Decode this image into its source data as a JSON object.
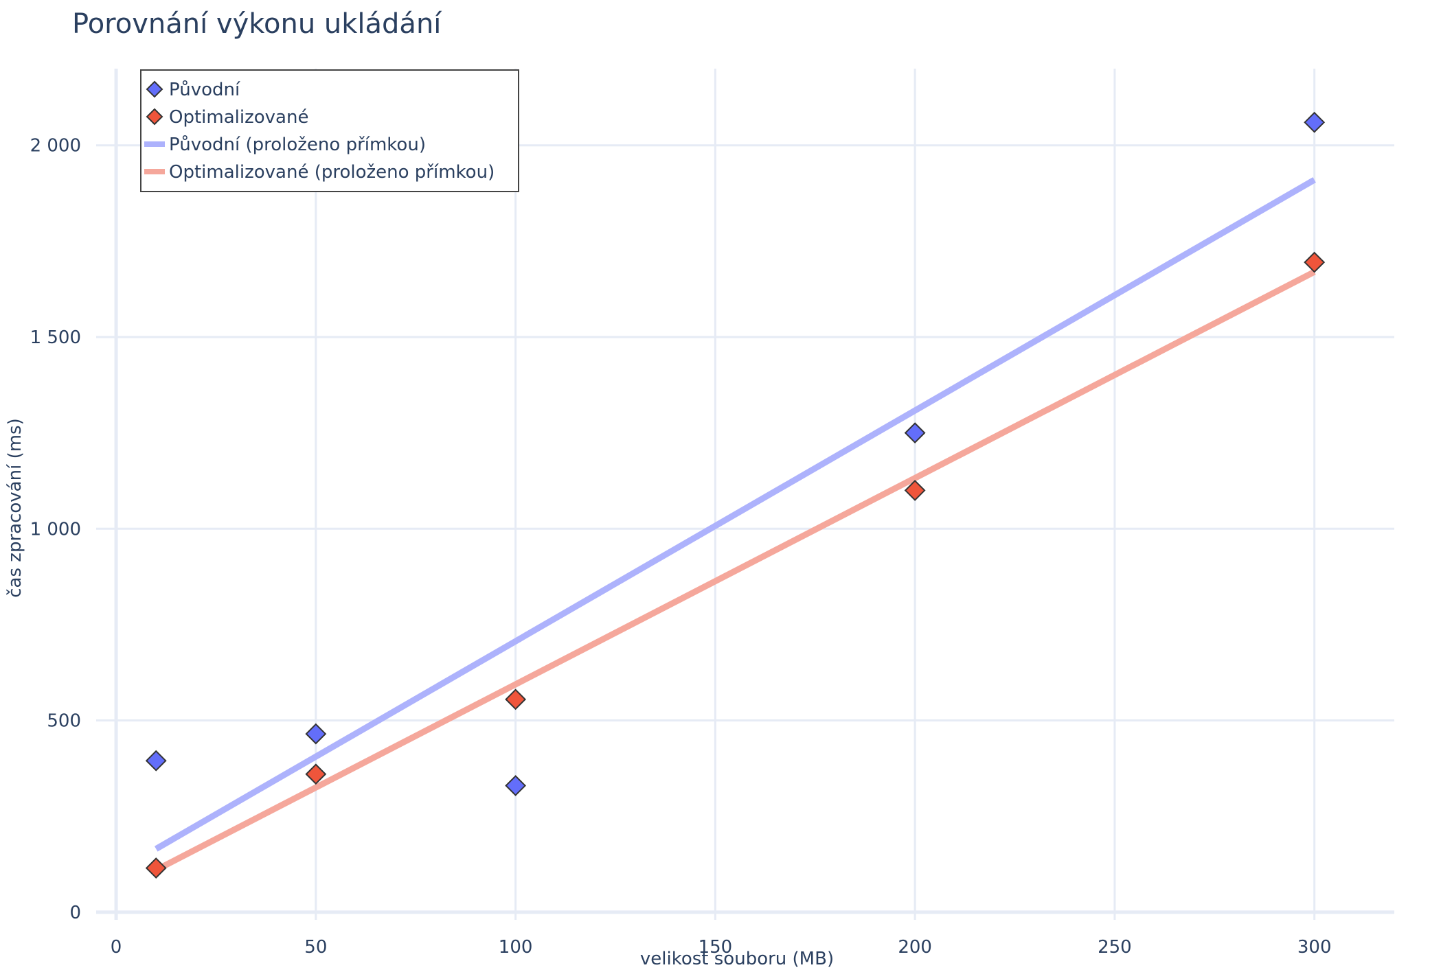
{
  "chart_data": {
    "type": "scatter",
    "title": "Porovnání výkonu ukládání",
    "xlabel": "velikost souboru (MB)",
    "ylabel": "čas zpracování (ms)",
    "xlim": [
      -5,
      320
    ],
    "ylim": [
      -20,
      2200
    ],
    "x_ticks": [
      0,
      50,
      100,
      150,
      200,
      250,
      300
    ],
    "y_ticks": [
      0,
      500,
      1000,
      1500,
      2000
    ],
    "x_tick_labels": [
      "0",
      "50",
      "100",
      "150",
      "200",
      "250",
      "300"
    ],
    "y_tick_labels": [
      "0",
      "500",
      "1 000",
      "1 500",
      "2 000"
    ],
    "grid": true,
    "legend_position": "top-left",
    "series": [
      {
        "name": "Původní",
        "kind": "markers",
        "marker": "diamond",
        "color": "#636efa",
        "x": [
          10,
          50,
          100,
          200,
          300
        ],
        "y": [
          395,
          465,
          330,
          1250,
          2060
        ]
      },
      {
        "name": "Optimalizované",
        "kind": "markers",
        "marker": "diamond",
        "color": "#ef553b",
        "x": [
          10,
          50,
          100,
          200,
          300
        ],
        "y": [
          115,
          360,
          555,
          1100,
          1695
        ]
      },
      {
        "name": "Původní (proloženo přímkou)",
        "kind": "line",
        "color": "#adb2fc",
        "x": [
          10,
          300
        ],
        "y": [
          165,
          1910
        ]
      },
      {
        "name": "Optimalizované (proloženo přímkou)",
        "kind": "line",
        "color": "#f5a79b",
        "x": [
          10,
          300
        ],
        "y": [
          110,
          1670
        ]
      }
    ]
  }
}
